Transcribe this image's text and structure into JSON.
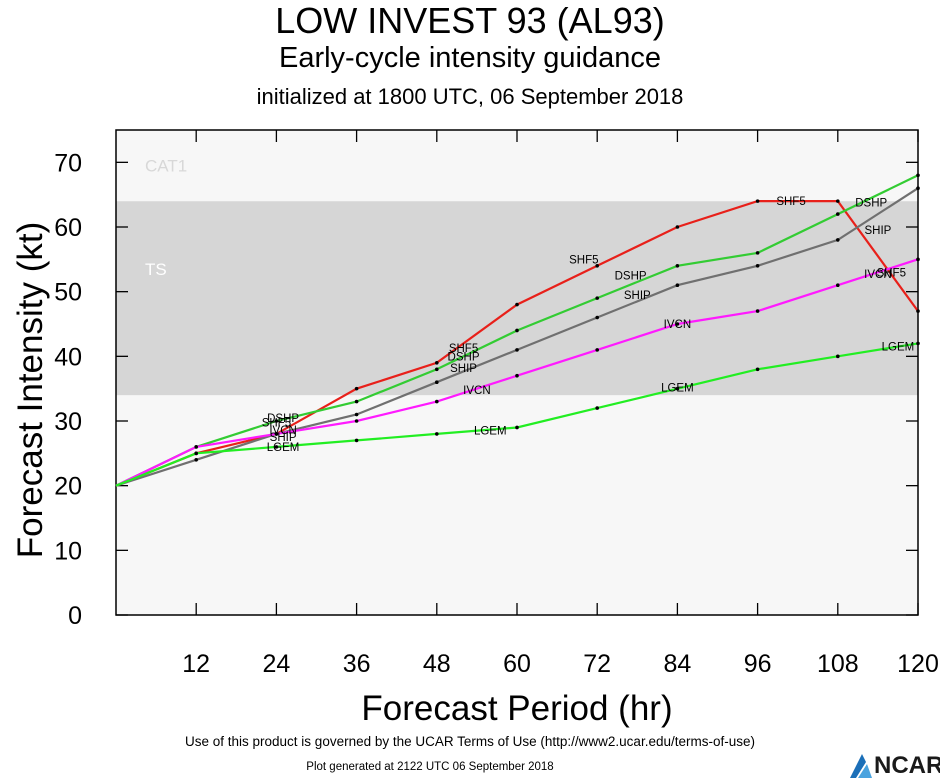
{
  "titles": {
    "main": "LOW INVEST 93 (AL93)",
    "sub": "Early-cycle intensity guidance",
    "init": "initialized at 1800 UTC, 06 September 2018"
  },
  "footer": {
    "terms": "Use of this product is governed by the UCAR Terms of Use (http://www2.ucar.edu/terms-of-use)",
    "generated": "Plot generated at 2122 UTC   06 September 2018",
    "logo": "NCAR"
  },
  "chart_data": {
    "type": "line",
    "xlabel": "Forecast Period (hr)",
    "ylabel": "Forecast Intensity (kt)",
    "xlim": [
      0,
      120
    ],
    "ylim": [
      0,
      75
    ],
    "xticks": [
      12,
      24,
      36,
      48,
      60,
      72,
      84,
      96,
      108,
      120
    ],
    "yticks": [
      0,
      10,
      20,
      30,
      40,
      50,
      60,
      70
    ],
    "bands": [
      {
        "label": "TS",
        "from": 34,
        "to": 64,
        "color": "#d6d6d6"
      },
      {
        "label": "CAT1",
        "from": 64,
        "to": 83,
        "color": "#f7f7f7"
      }
    ],
    "series": [
      {
        "name": "SHF5",
        "color": "#e8201a",
        "points": [
          [
            0,
            20
          ],
          [
            12,
            25
          ],
          [
            24,
            28
          ],
          [
            36,
            35
          ],
          [
            48,
            39
          ],
          [
            60,
            48
          ],
          [
            72,
            54
          ],
          [
            84,
            60
          ],
          [
            96,
            64
          ],
          [
            108,
            64
          ],
          [
            120,
            47
          ]
        ],
        "labels": [
          [
            24,
            29.8
          ],
          [
            52,
            41.3
          ],
          [
            70,
            55
          ],
          [
            101,
            64
          ],
          [
            116,
            53
          ]
        ]
      },
      {
        "name": "DSHP",
        "color": "#33cc33",
        "points": [
          [
            0,
            20
          ],
          [
            12,
            26
          ],
          [
            24,
            30
          ],
          [
            36,
            33
          ],
          [
            48,
            38
          ],
          [
            60,
            44
          ],
          [
            72,
            49
          ],
          [
            84,
            54
          ],
          [
            96,
            56
          ],
          [
            108,
            62
          ],
          [
            120,
            68
          ]
        ],
        "labels": [
          [
            25,
            30.5
          ],
          [
            52,
            40
          ],
          [
            77,
            52.5
          ],
          [
            113,
            63.8
          ]
        ]
      },
      {
        "name": "SHIP",
        "color": "#707070",
        "points": [
          [
            0,
            20
          ],
          [
            12,
            24
          ],
          [
            24,
            28
          ],
          [
            36,
            31
          ],
          [
            48,
            36
          ],
          [
            60,
            41
          ],
          [
            72,
            46
          ],
          [
            84,
            51
          ],
          [
            96,
            54
          ],
          [
            108,
            58
          ],
          [
            120,
            66
          ]
        ],
        "labels": [
          [
            25,
            27.5
          ],
          [
            52,
            38.2
          ],
          [
            78,
            49.5
          ],
          [
            114,
            59.5
          ]
        ]
      },
      {
        "name": "IVCN",
        "color": "#ff1aff",
        "points": [
          [
            0,
            20
          ],
          [
            12,
            26
          ],
          [
            24,
            28
          ],
          [
            36,
            30
          ],
          [
            48,
            33
          ],
          [
            60,
            37
          ],
          [
            72,
            41
          ],
          [
            84,
            45
          ],
          [
            96,
            47
          ],
          [
            108,
            51
          ],
          [
            120,
            55
          ]
        ],
        "labels": [
          [
            25,
            28.6
          ],
          [
            54,
            34.8
          ],
          [
            84,
            45
          ],
          [
            114,
            52.7
          ]
        ]
      },
      {
        "name": "LGEM",
        "color": "#22ee22",
        "points": [
          [
            0,
            20
          ],
          [
            12,
            25
          ],
          [
            24,
            26
          ],
          [
            36,
            27
          ],
          [
            48,
            28
          ],
          [
            60,
            29
          ],
          [
            72,
            32
          ],
          [
            84,
            35
          ],
          [
            96,
            38
          ],
          [
            108,
            40
          ],
          [
            120,
            42
          ]
        ],
        "labels": [
          [
            25,
            26
          ],
          [
            56,
            28.5
          ],
          [
            84,
            35.2
          ],
          [
            117,
            41.5
          ]
        ]
      }
    ]
  }
}
